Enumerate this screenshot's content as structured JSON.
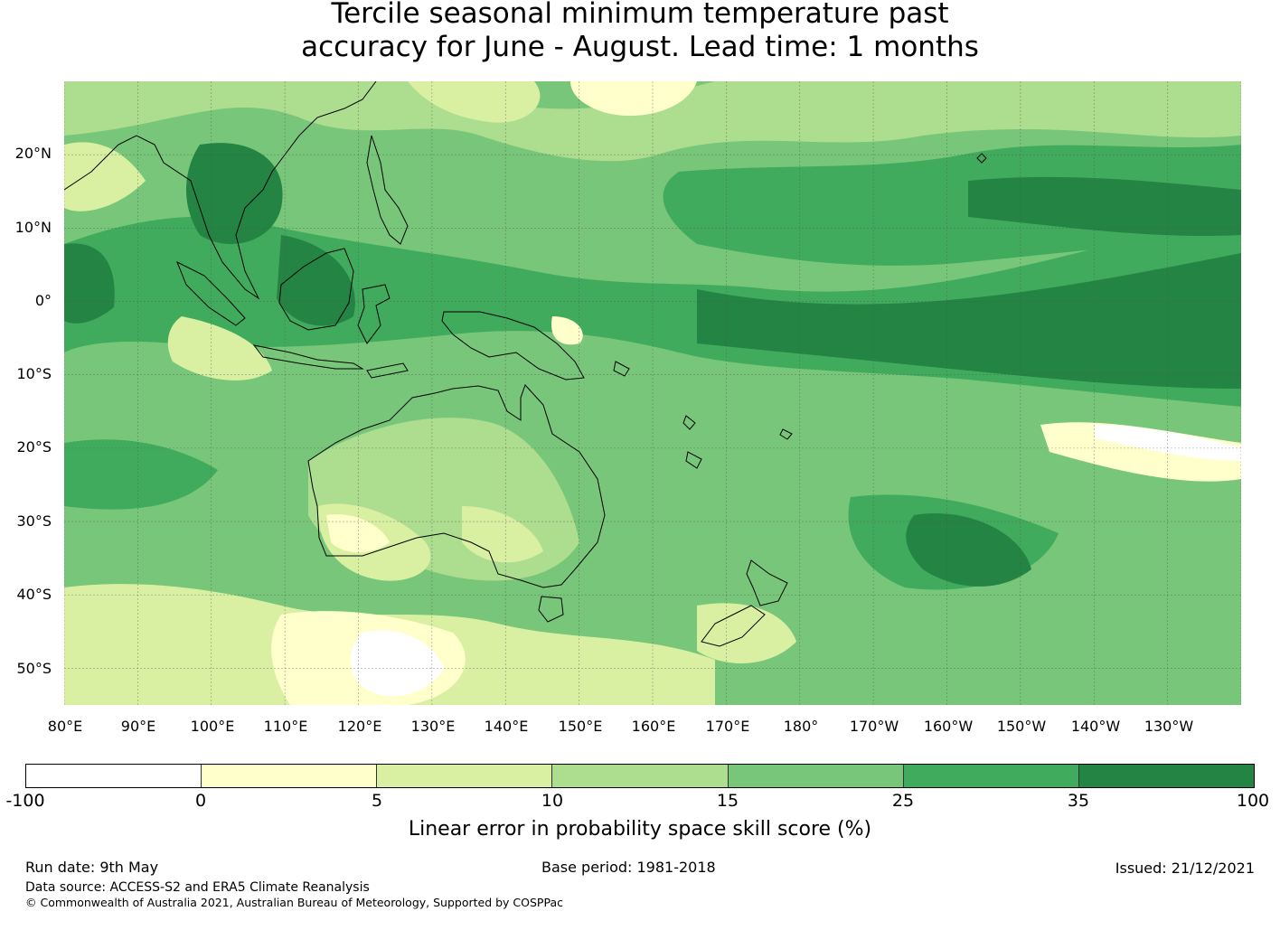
{
  "title": {
    "line1": "Tercile seasonal minimum temperature past",
    "line2": "accuracy for June - August. Lead time: 1 months"
  },
  "map": {
    "lon_range": [
      80,
      240
    ],
    "lat_range": [
      -55,
      30
    ],
    "latitude_labels": [
      "20°N",
      "10°N",
      "0°",
      "10°S",
      "20°S",
      "30°S",
      "40°S",
      "50°S"
    ],
    "longitude_labels": [
      "80°E",
      "90°E",
      "100°E",
      "110°E",
      "120°E",
      "130°E",
      "140°E",
      "150°E",
      "160°E",
      "170°E",
      "180°",
      "170°W",
      "160°W",
      "150°W",
      "140°W",
      "130°W"
    ],
    "gridlines": true
  },
  "colorbar": {
    "ticks": [
      "-100",
      "0",
      "5",
      "10",
      "15",
      "25",
      "35",
      "100"
    ],
    "colors": [
      "#ffffff",
      "#ffffcc",
      "#d9f0a3",
      "#addd8e",
      "#78c679",
      "#41ab5d",
      "#238443"
    ],
    "label": "Linear error in probability space skill score (%)"
  },
  "footer": {
    "run_date": "Run date: 9th May",
    "base_period": "Base period: 1981-2018",
    "issued": "Issued: 21/12/2021",
    "data_source": "Data source: ACCESS-S2 and ERA5 Climate Reanalysis",
    "copyright": "© Commonwealth of Australia 2021, Australian Bureau of Meteorology, Supported by COSPPac"
  }
}
